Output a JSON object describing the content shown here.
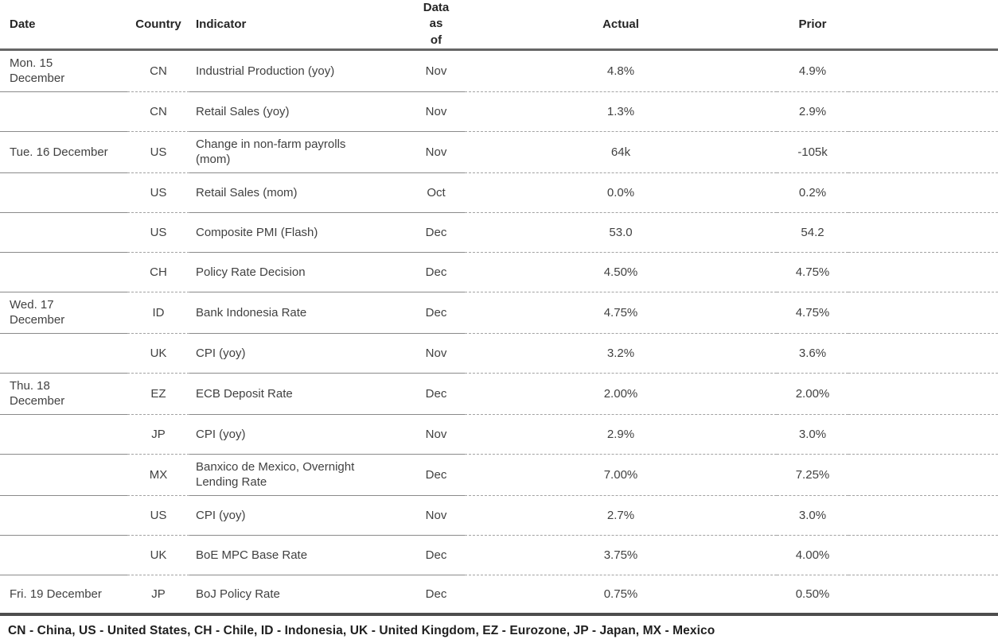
{
  "header": {
    "date": "Date",
    "country": "Country",
    "indicator": "Indicator",
    "as_of": "Data\nas\nof",
    "actual": "Actual",
    "prior": "Prior"
  },
  "rows": [
    {
      "date": "Mon. 15\nDecember",
      "country": "CN",
      "indicator": "Industrial Production (yoy)",
      "as_of": "Nov",
      "actual": "4.8%",
      "prior": "4.9%"
    },
    {
      "date": "",
      "country": "CN",
      "indicator": "Retail Sales (yoy)",
      "as_of": "Nov",
      "actual": "1.3%",
      "prior": "2.9%"
    },
    {
      "date": "Tue. 16 December",
      "country": "US",
      "indicator": "Change in non-farm payrolls (mom)",
      "as_of": "Nov",
      "actual": "64k",
      "prior": "-105k"
    },
    {
      "date": "",
      "country": "US",
      "indicator": "Retail Sales (mom)",
      "as_of": "Oct",
      "actual": "0.0%",
      "prior": "0.2%"
    },
    {
      "date": "",
      "country": "US",
      "indicator": "Composite PMI (Flash)",
      "as_of": "Dec",
      "actual": "53.0",
      "prior": "54.2"
    },
    {
      "date": "",
      "country": "CH",
      "indicator": "Policy Rate Decision",
      "as_of": "Dec",
      "actual": "4.50%",
      "prior": "4.75%"
    },
    {
      "date": "Wed. 17\nDecember",
      "country": "ID",
      "indicator": "Bank Indonesia Rate",
      "as_of": "Dec",
      "actual": "4.75%",
      "prior": "4.75%"
    },
    {
      "date": "",
      "country": "UK",
      "indicator": "CPI (yoy)",
      "as_of": "Nov",
      "actual": "3.2%",
      "prior": "3.6%"
    },
    {
      "date": "Thu. 18\nDecember",
      "country": "EZ",
      "indicator": "ECB Deposit Rate",
      "as_of": "Dec",
      "actual": "2.00%",
      "prior": "2.00%"
    },
    {
      "date": "",
      "country": "JP",
      "indicator": "CPI (yoy)",
      "as_of": "Nov",
      "actual": "2.9%",
      "prior": "3.0%"
    },
    {
      "date": "",
      "country": "MX",
      "indicator": "Banxico de Mexico, Overnight Lending Rate",
      "as_of": "Dec",
      "actual": "7.00%",
      "prior": "7.25%"
    },
    {
      "date": "",
      "country": "US",
      "indicator": "CPI (yoy)",
      "as_of": "Nov",
      "actual": "2.7%",
      "prior": "3.0%"
    },
    {
      "date": "",
      "country": "UK",
      "indicator": "BoE MPC Base Rate",
      "as_of": "Dec",
      "actual": "3.75%",
      "prior": "4.00%"
    },
    {
      "date": "Fri. 19 December",
      "country": "JP",
      "indicator": "BoJ Policy Rate",
      "as_of": "Dec",
      "actual": "0.75%",
      "prior": "0.50%"
    }
  ],
  "footnote": "CN - China, US - United States, CH - Chile, ID - Indonesia, UK - United Kingdom, EZ - Eurozone, JP - Japan, MX - Mexico",
  "colors": {
    "text": "#414141",
    "heading": "#262626",
    "rule_thick": "#666666",
    "rule_dashed": "#a3a3a3"
  }
}
